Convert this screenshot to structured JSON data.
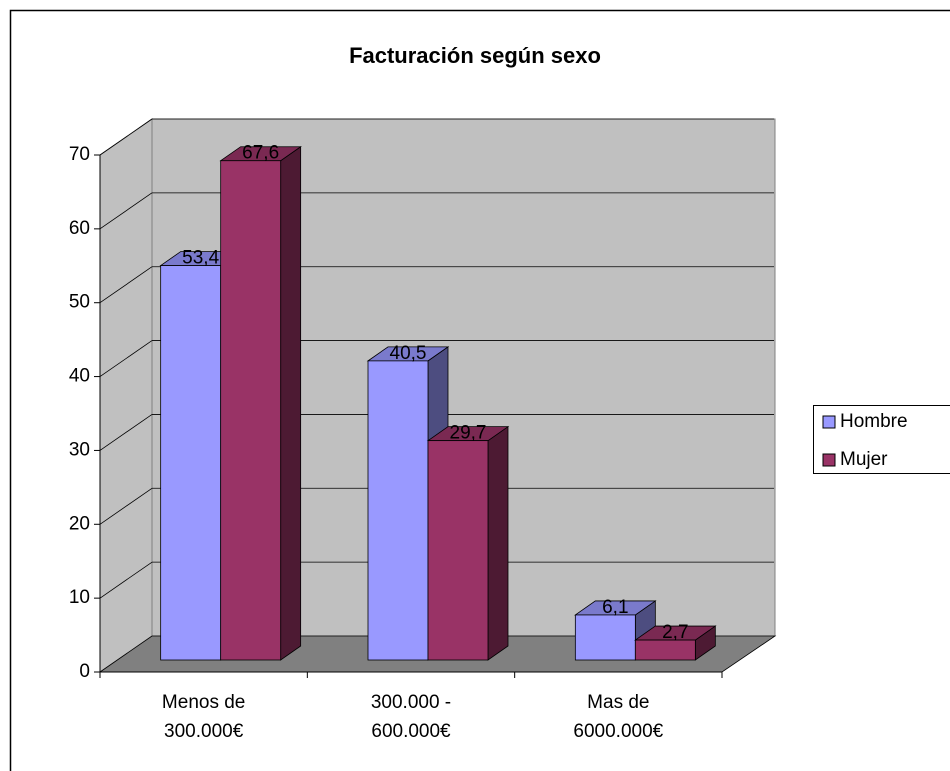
{
  "chart_data": {
    "type": "bar",
    "title": "Facturación según sexo",
    "categories": [
      "Menos de 300.000€",
      "300.000 - 600.000€",
      "Mas de 6000.000€"
    ],
    "series": [
      {
        "name": "Hombre",
        "color": "#9999ff",
        "values": [
          53.4,
          40.5,
          6.1
        ],
        "value_labels": [
          "53,4",
          "40,5",
          "6,1"
        ]
      },
      {
        "name": "Mujer",
        "color": "#993366",
        "values": [
          67.6,
          29.7,
          2.7
        ],
        "value_labels": [
          "67,6",
          "29,7",
          "2,7"
        ]
      }
    ],
    "ylim": [
      0,
      70
    ],
    "yticks": [
      0,
      10,
      20,
      30,
      40,
      50,
      60,
      70
    ],
    "grid": true,
    "legend": "right"
  }
}
